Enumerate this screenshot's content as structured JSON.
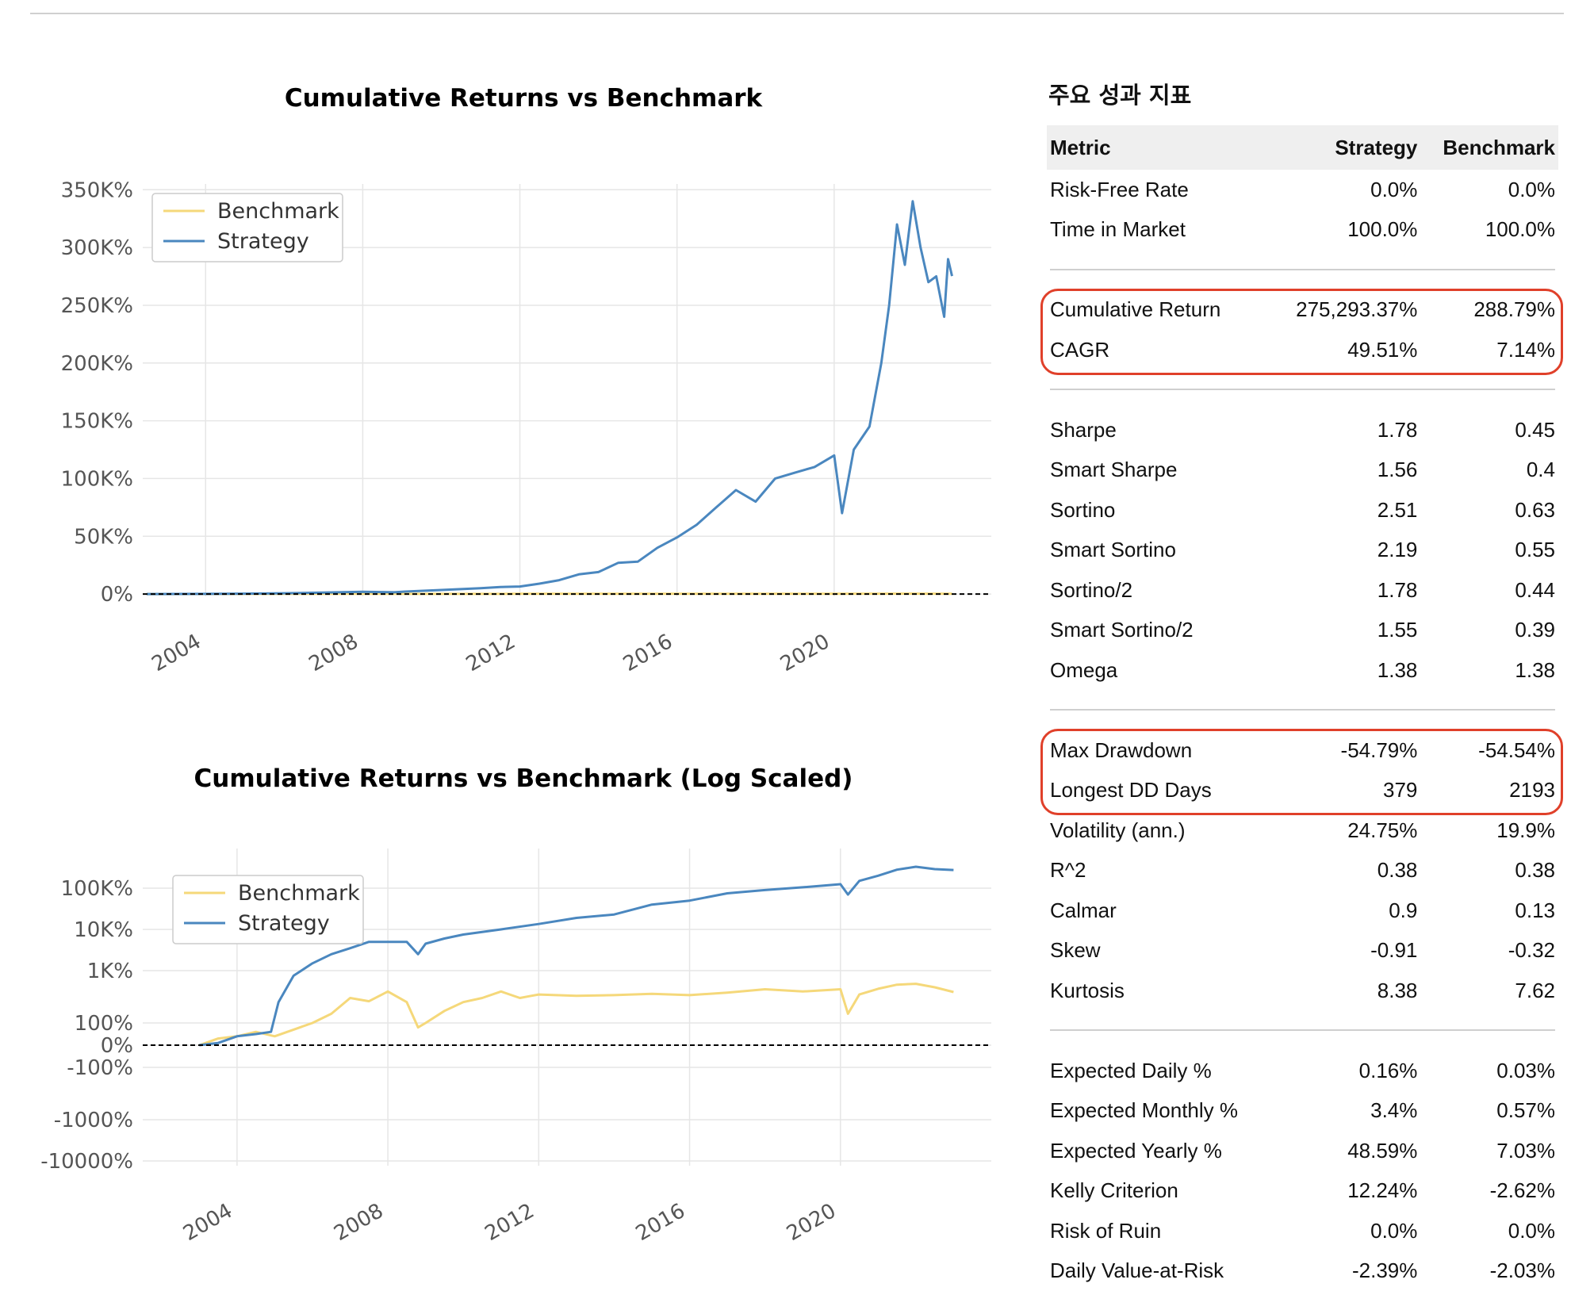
{
  "chart_data": [
    {
      "type": "line",
      "title": "Cumulative Returns vs Benchmark",
      "y_scale": "linear",
      "x_ticks": [
        "2004",
        "2008",
        "2012",
        "2016",
        "2020"
      ],
      "y_ticks": [
        "0%",
        "50K%",
        "100K%",
        "150K%",
        "200K%",
        "250K%",
        "300K%",
        "350K%"
      ],
      "ylim": [
        -2000,
        355000
      ],
      "xlim": [
        2002.4,
        2024.0
      ],
      "legend": {
        "position": "top-left",
        "entries": [
          "Benchmark",
          "Strategy"
        ]
      },
      "grid": true,
      "reference_line": {
        "y": 0,
        "style": "dashed"
      },
      "series": [
        {
          "name": "Benchmark",
          "color": "#f5d87a",
          "x": [
            2002.5,
            2004.0,
            2006.0,
            2008.0,
            2010.0,
            2012.0,
            2014.0,
            2016.0,
            2018.0,
            2020.0,
            2022.0,
            2023.0
          ],
          "values": [
            0,
            50,
            120,
            180,
            150,
            200,
            230,
            240,
            260,
            270,
            320,
            289
          ]
        },
        {
          "name": "Strategy",
          "color": "#4a87bf",
          "x": [
            2002.5,
            2004.0,
            2005.0,
            2006.0,
            2007.0,
            2008.0,
            2008.8,
            2009.0,
            2010.0,
            2011.0,
            2011.5,
            2012.0,
            2012.5,
            2013.0,
            2013.5,
            2014.0,
            2014.5,
            2015.0,
            2015.5,
            2016.0,
            2016.5,
            2017.0,
            2017.5,
            2018.0,
            2018.5,
            2019.0,
            2019.5,
            2020.0,
            2020.2,
            2020.5,
            2020.9,
            2021.2,
            2021.4,
            2021.6,
            2021.8,
            2022.0,
            2022.2,
            2022.4,
            2022.6,
            2022.8,
            2022.9,
            2023.0
          ],
          "values": [
            0,
            100,
            300,
            700,
            1200,
            2000,
            1500,
            2000,
            3500,
            5000,
            6000,
            6500,
            9000,
            12000,
            17000,
            19000,
            27000,
            28000,
            40000,
            49000,
            60000,
            75000,
            90000,
            80000,
            100000,
            105000,
            110000,
            120000,
            70000,
            125000,
            145000,
            200000,
            250000,
            320000,
            285000,
            340000,
            300000,
            270000,
            275000,
            240000,
            290000,
            275293
          ]
        }
      ]
    },
    {
      "type": "line",
      "title": "Cumulative Returns vs Benchmark (Log Scaled)",
      "y_scale": "symlog",
      "x_ticks": [
        "2004",
        "2008",
        "2012",
        "2016",
        "2020"
      ],
      "y_ticks": [
        "100K%",
        "10K%",
        "1K%",
        "100%",
        "0%",
        "-100%",
        "-1000%",
        "-10000%"
      ],
      "ylim": [
        -10000,
        300000
      ],
      "xlim": [
        2001.5,
        2024.0
      ],
      "legend": {
        "position": "top-left",
        "entries": [
          "Benchmark",
          "Strategy"
        ]
      },
      "grid": true,
      "reference_line": {
        "y": 0,
        "style": "dashed"
      },
      "series": [
        {
          "name": "Benchmark",
          "color": "#f5d87a",
          "x": [
            2003.0,
            2003.5,
            2004.0,
            2004.5,
            2005.0,
            2005.5,
            2006.0,
            2006.5,
            2007.0,
            2007.5,
            2008.0,
            2008.5,
            2008.8,
            2009.0,
            2009.5,
            2010.0,
            2010.5,
            2011.0,
            2011.5,
            2011.8,
            2012.0,
            2013.0,
            2014.0,
            2015.0,
            2016.0,
            2017.0,
            2018.0,
            2019.0,
            2020.0,
            2020.2,
            2020.5,
            2021.0,
            2021.5,
            2022.0,
            2022.5,
            2023.0
          ],
          "values": [
            0,
            30,
            40,
            60,
            40,
            70,
            100,
            150,
            300,
            260,
            400,
            250,
            80,
            100,
            170,
            250,
            300,
            400,
            300,
            330,
            350,
            330,
            340,
            360,
            340,
            380,
            440,
            400,
            440,
            150,
            350,
            450,
            540,
            560,
            480,
            390
          ]
        },
        {
          "name": "Strategy",
          "color": "#4a87bf",
          "x": [
            2003.0,
            2003.5,
            2004.0,
            2004.5,
            2004.9,
            2005.1,
            2005.5,
            2006.0,
            2006.5,
            2007.0,
            2007.5,
            2008.0,
            2008.5,
            2008.8,
            2009.0,
            2009.5,
            2010.0,
            2011.0,
            2012.0,
            2013.0,
            2014.0,
            2015.0,
            2016.0,
            2017.0,
            2018.0,
            2019.0,
            2020.0,
            2020.2,
            2020.5,
            2021.0,
            2021.5,
            2022.0,
            2022.5,
            2023.0
          ],
          "values": [
            0,
            10,
            40,
            50,
            60,
            250,
            800,
            1500,
            2500,
            3500,
            5000,
            5000,
            5000,
            2500,
            4500,
            6000,
            7500,
            10000,
            13500,
            19000,
            23000,
            40000,
            50000,
            75000,
            90000,
            105000,
            125000,
            70000,
            150000,
            200000,
            280000,
            330000,
            290000,
            275293
          ]
        }
      ]
    }
  ],
  "metrics": {
    "heading": "주요 성과 지표",
    "header": {
      "metric": "Metric",
      "strategy": "Strategy",
      "benchmark": "Benchmark"
    },
    "groups": [
      {
        "highlight": false,
        "rows": [
          {
            "metric": "Risk-Free Rate",
            "strategy": "0.0%",
            "benchmark": "0.0%"
          },
          {
            "metric": "Time in Market",
            "strategy": "100.0%",
            "benchmark": "100.0%"
          }
        ]
      },
      {
        "highlight": true,
        "rows": [
          {
            "metric": "Cumulative Return",
            "strategy": "275,293.37%",
            "benchmark": "288.79%"
          },
          {
            "metric": "CAGR",
            "strategy": "49.51%",
            "benchmark": "7.14%"
          }
        ]
      },
      {
        "highlight": false,
        "rows": [
          {
            "metric": "Sharpe",
            "strategy": "1.78",
            "benchmark": "0.45"
          },
          {
            "metric": "Smart Sharpe",
            "strategy": "1.56",
            "benchmark": "0.4"
          },
          {
            "metric": "Sortino",
            "strategy": "2.51",
            "benchmark": "0.63"
          },
          {
            "metric": "Smart Sortino",
            "strategy": "2.19",
            "benchmark": "0.55"
          },
          {
            "metric": "Sortino/2",
            "strategy": "1.78",
            "benchmark": "0.44"
          },
          {
            "metric": "Smart Sortino/2",
            "strategy": "1.55",
            "benchmark": "0.39"
          },
          {
            "metric": "Omega",
            "strategy": "1.38",
            "benchmark": "1.38"
          }
        ]
      },
      {
        "highlight": true,
        "rows": [
          {
            "metric": "Max Drawdown",
            "strategy": "-54.79%",
            "benchmark": "-54.54%"
          },
          {
            "metric": "Longest DD Days",
            "strategy": "379",
            "benchmark": "2193"
          },
          {
            "metric": "Volatility (ann.)",
            "strategy": "24.75%",
            "benchmark": "19.9%"
          },
          {
            "metric": "R^2",
            "strategy": "0.38",
            "benchmark": "0.38"
          },
          {
            "metric": "Calmar",
            "strategy": "0.9",
            "benchmark": "0.13"
          },
          {
            "metric": "Skew",
            "strategy": "-0.91",
            "benchmark": "-0.32"
          },
          {
            "metric": "Kurtosis",
            "strategy": "8.38",
            "benchmark": "7.62"
          }
        ]
      },
      {
        "highlight": false,
        "rows": [
          {
            "metric": "Expected Daily %",
            "strategy": "0.16%",
            "benchmark": "0.03%"
          },
          {
            "metric": "Expected Monthly %",
            "strategy": "3.4%",
            "benchmark": "0.57%"
          },
          {
            "metric": "Expected Yearly %",
            "strategy": "48.59%",
            "benchmark": "7.03%"
          },
          {
            "metric": "Kelly Criterion",
            "strategy": "12.24%",
            "benchmark": "-2.62%"
          },
          {
            "metric": "Risk of Ruin",
            "strategy": "0.0%",
            "benchmark": "0.0%"
          },
          {
            "metric": "Daily Value-at-Risk",
            "strategy": "-2.39%",
            "benchmark": "-2.03%"
          }
        ]
      }
    ],
    "highlight_color": "#e0402a"
  }
}
